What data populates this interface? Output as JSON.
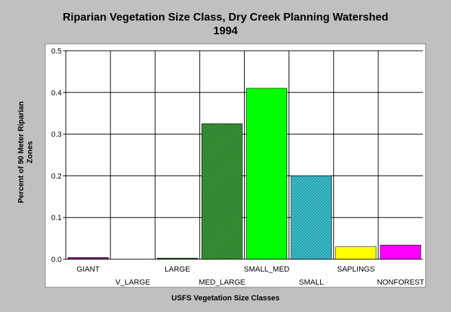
{
  "chart_data": {
    "type": "bar",
    "title_line1": "Riparian Vegetation Size Class, Dry Creek Planning Watershed",
    "title_line2": "1994",
    "xlabel": "USFS Vegetation Size Classes",
    "ylabel_line1": "Percent of 90 Meter Riparian",
    "ylabel_line2": "Zones",
    "ylim": [
      0,
      0.5
    ],
    "yticks": [
      "0.0",
      "0.1",
      "0.2",
      "0.3",
      "0.4",
      "0.5"
    ],
    "grid": "vertical separators between categories",
    "categories": [
      "GIANT",
      "V_LARGE",
      "LARGE",
      "MED_LARGE",
      "SMALL_MED",
      "SMALL",
      "SAPLINGS",
      "NONFOREST"
    ],
    "values": [
      0.004,
      0.0,
      0.002,
      0.325,
      0.41,
      0.2,
      0.03,
      0.034
    ],
    "colors": [
      "#7f007f",
      "#000000",
      "#006400",
      "#2e8b2e",
      "#00ff00",
      "#2aa7b3",
      "#ffff00",
      "#ff00ff"
    ],
    "patterns": [
      "solid",
      "solid",
      "solid",
      "hatch",
      "solid",
      "hatch",
      "solid",
      "solid"
    ]
  }
}
